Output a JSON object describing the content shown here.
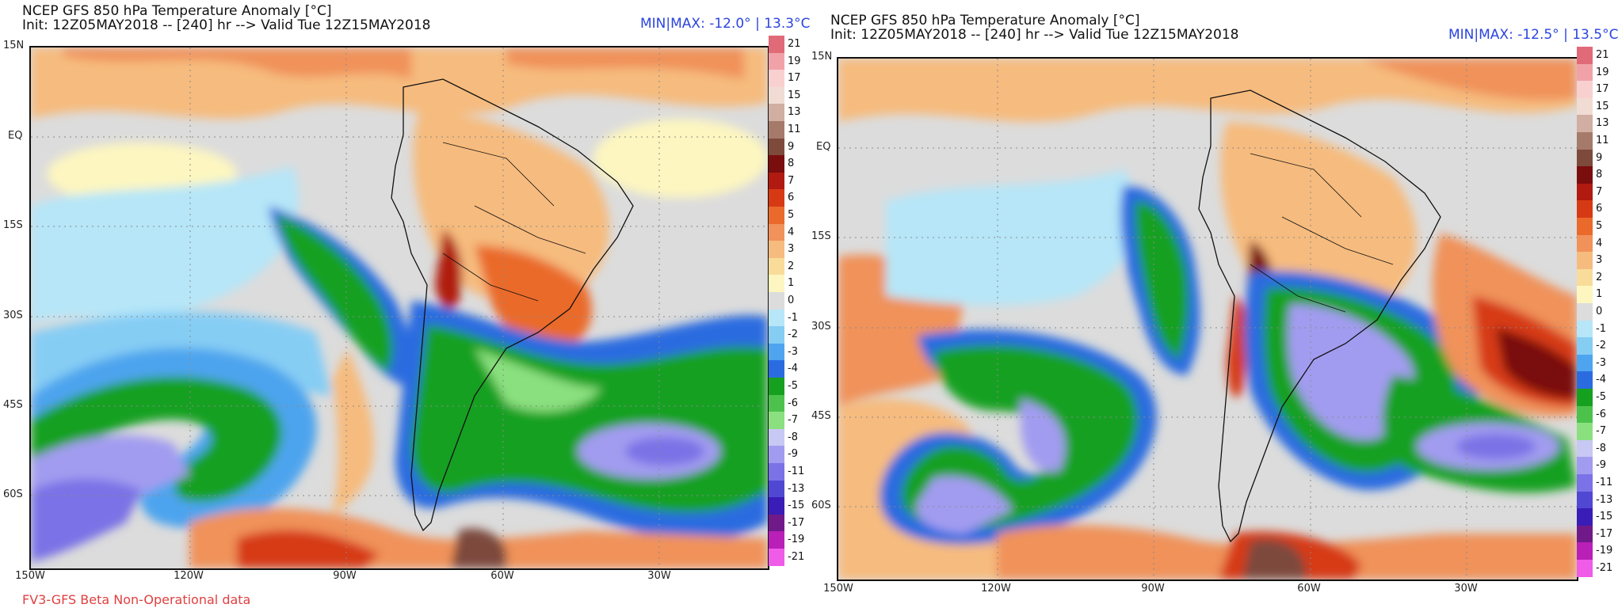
{
  "panels": [
    {
      "title_line1": "NCEP GFS 850 hPa Temperature Anomaly [°C]",
      "title_line2": "Init: 12Z05MAY2018 -- [240] hr --> Valid Tue 12Z15MAY2018",
      "minmax": "MIN|MAX: -12.0° | 13.3°C"
    },
    {
      "title_line1": "NCEP GFS 850 hPa Temperature Anomaly [°C]",
      "title_line2": "Init: 12Z05MAY2018 -- [240] hr --> Valid Tue 12Z15MAY2018",
      "minmax": "MIN|MAX: -12.5° | 13.5°C"
    }
  ],
  "lat_labels": [
    "15N",
    "EQ",
    "15S",
    "30S",
    "45S",
    "60S"
  ],
  "lon_labels": [
    "150W",
    "120W",
    "90W",
    "60W",
    "30W"
  ],
  "footer": "FV3-GFS Beta Non-Operational data",
  "colorbar": {
    "labels": [
      "21",
      "19",
      "17",
      "15",
      "13",
      "11",
      "9",
      "8",
      "7",
      "6",
      "5",
      "4",
      "3",
      "2",
      "1",
      "0",
      "-1",
      "-2",
      "-3",
      "-4",
      "-5",
      "-6",
      "-7",
      "-8",
      "-9",
      "-11",
      "-13",
      "-15",
      "-17",
      "-19",
      "-21"
    ],
    "colors": [
      "#e06a78",
      "#f1a2a8",
      "#f8d0d0",
      "#f0dcd2",
      "#d0aea2",
      "#a57a6a",
      "#7d4a3c",
      "#7a0d0d",
      "#b01a10",
      "#d63a14",
      "#ea6a2c",
      "#f0925a",
      "#f6bb7e",
      "#f9dc9a",
      "#fdf6c0",
      "#dcdcdc",
      "#b6e6f8",
      "#86cdf4",
      "#4ea4ee",
      "#2a6ce0",
      "#16a020",
      "#4cc24c",
      "#8ae07e",
      "#c8c8f4",
      "#a29cf0",
      "#7a72e6",
      "#5048d2",
      "#3a1cb6",
      "#701a8a",
      "#b820b8",
      "#ee5ce8"
    ]
  }
}
